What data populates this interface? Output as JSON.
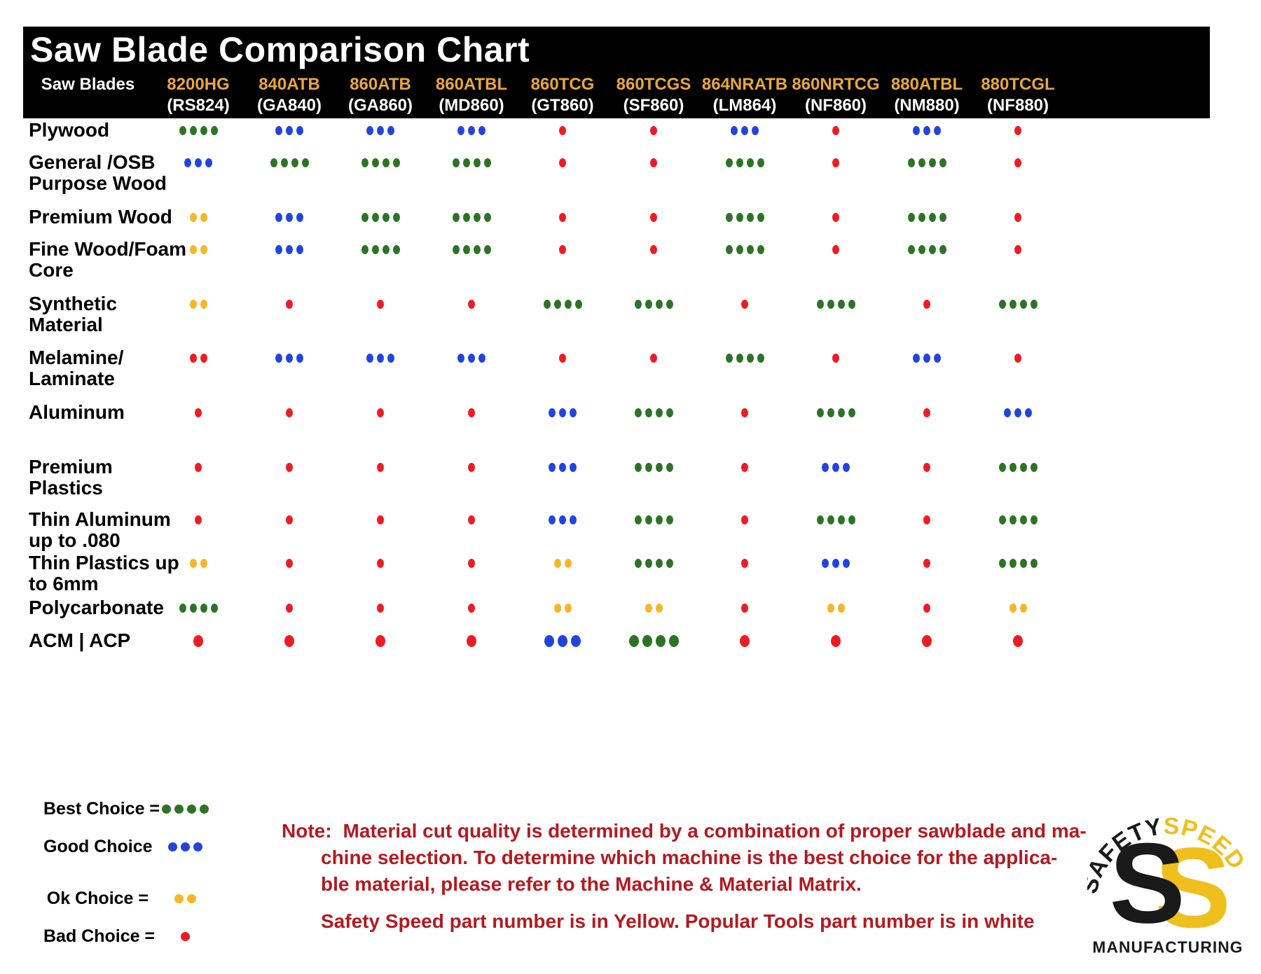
{
  "chart_data": {
    "type": "table",
    "title": "Saw Blade Comparison Chart",
    "corner_label": "Saw Blades",
    "columns": [
      {
        "model": "8200HG",
        "part": "(RS824)"
      },
      {
        "model": "840ATB",
        "part": "(GA840)"
      },
      {
        "model": "860ATB",
        "part": "(GA860)"
      },
      {
        "model": "860ATBL",
        "part": "(MD860)"
      },
      {
        "model": "860TCG",
        "part": "(GT860)"
      },
      {
        "model": "860TCGS",
        "part": "(SF860)"
      },
      {
        "model": "864NRATB",
        "part": "(LM864)"
      },
      {
        "model": "860NRTCG",
        "part": "(NF860)"
      },
      {
        "model": "880ATBL",
        "part": "(NM880)"
      },
      {
        "model": "880TCGL",
        "part": "(NF880)"
      }
    ],
    "rating_codes": {
      "best": {
        "dots": 4,
        "color": "#2D7326"
      },
      "good": {
        "dots": 3,
        "color": "#2244DD"
      },
      "ok": {
        "dots": 2,
        "color": "#F8B627"
      },
      "bad": {
        "dots": 1,
        "color": "#ED1C24"
      },
      "bad2": {
        "dots": 2,
        "color": "#ED1C24"
      }
    },
    "rows": [
      {
        "material_lines": [
          "Plywood"
        ],
        "ratings": [
          "best",
          "good",
          "good",
          "good",
          "bad",
          "bad",
          "good",
          "bad",
          "good",
          "bad"
        ]
      },
      {
        "material_lines": [
          "General /OSB",
          "Purpose Wood"
        ],
        "ratings": [
          "good",
          "best",
          "best",
          "best",
          "bad",
          "bad",
          "best",
          "bad",
          "best",
          "bad"
        ]
      },
      {
        "material_lines": [
          "Premium Wood"
        ],
        "ratings": [
          "ok",
          "good",
          "best",
          "best",
          "bad",
          "bad",
          "best",
          "bad",
          "best",
          "bad"
        ]
      },
      {
        "material_lines": [
          "Fine Wood/Foam",
          "Core"
        ],
        "ratings": [
          "ok",
          "good",
          "best",
          "best",
          "bad",
          "bad",
          "best",
          "bad",
          "best",
          "bad"
        ]
      },
      {
        "material_lines": [
          "Synthetic",
          "Material"
        ],
        "ratings": [
          "ok",
          "bad",
          "bad",
          "bad",
          "best",
          "best",
          "bad",
          "best",
          "bad",
          "best"
        ]
      },
      {
        "material_lines": [
          "Melamine/",
          "Laminate"
        ],
        "ratings": [
          "bad2",
          "good",
          "good",
          "good",
          "bad",
          "bad",
          "best",
          "bad",
          "good",
          "bad"
        ]
      },
      {
        "material_lines": [
          "Aluminum"
        ],
        "ratings": [
          "bad",
          "bad",
          "bad",
          "bad",
          "good",
          "best",
          "bad",
          "best",
          "bad",
          "good"
        ]
      },
      {
        "material_lines": [
          "Premium",
          "Plastics"
        ],
        "ratings": [
          "bad",
          "bad",
          "bad",
          "bad",
          "good",
          "best",
          "bad",
          "good",
          "bad",
          "best"
        ]
      },
      {
        "material_lines": [
          "Thin Aluminum",
          "up to .080"
        ],
        "ratings": [
          "bad",
          "bad",
          "bad",
          "bad",
          "good",
          "best",
          "bad",
          "best",
          "bad",
          "best"
        ]
      },
      {
        "material_lines": [
          "Thin Plastics up",
          "to 6mm"
        ],
        "ratings": [
          "ok",
          "bad",
          "bad",
          "bad",
          "ok",
          "best",
          "bad",
          "good",
          "bad",
          "best"
        ]
      },
      {
        "material_lines": [
          "Polycarbonate"
        ],
        "ratings": [
          "best",
          "bad",
          "bad",
          "bad",
          "ok",
          "ok",
          "bad",
          "ok",
          "bad",
          "ok"
        ]
      },
      {
        "material_lines": [
          "ACM | ACP"
        ],
        "ratings": [
          "bad",
          "bad",
          "bad",
          "bad",
          "good",
          "best",
          "bad",
          "bad",
          "bad",
          "bad"
        ],
        "large_dots": true
      }
    ]
  },
  "legend": [
    {
      "label": "Best Choice =",
      "code": "best"
    },
    {
      "label": "Good Choice",
      "code": "good"
    },
    {
      "label": "Ok Choice =",
      "code": "ok"
    },
    {
      "label": "Bad Choice =",
      "code": "bad"
    }
  ],
  "note": {
    "prefix": "Note:",
    "line1": "Material cut quality is determined by a combination of proper sawblade and ma-",
    "line2": "chine selection. To determine which machine is the best choice for the applica-",
    "line3": "ble material, please refer to the Machine & Material Matrix.",
    "footer": "Safety Speed part number is in Yellow. Popular Tools part number is in white"
  },
  "logo": {
    "arc_word_black": "SAFETY",
    "arc_word_yellow": "SPEED",
    "monogram_left": "S",
    "monogram_right": "S",
    "bottom_word": "MANUFACTURING"
  },
  "colors": {
    "header_bg": "#000000",
    "title_text": "#FFFFFF",
    "model_text": "#EAA73C",
    "part_text": "#FFFFFF",
    "material_text": "#000000",
    "note_text": "#B21A20",
    "logo_yellow": "#EFBF1E",
    "logo_black": "#1A1A1A"
  }
}
